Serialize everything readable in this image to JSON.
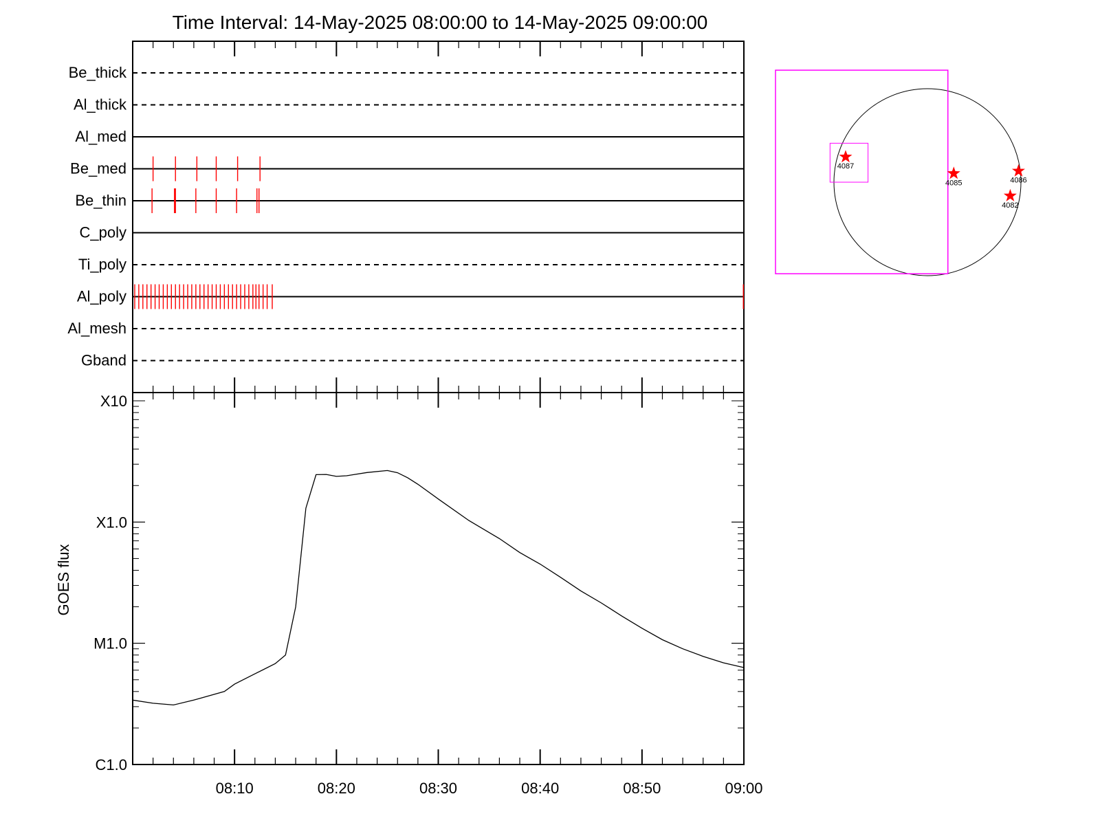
{
  "chart_data": {
    "title": "Time Interval: 14-May-2025 08:00:00 to 14-May-2025 09:00:00",
    "time_axis": {
      "range_minutes": [
        0,
        60
      ],
      "tick_labels": [
        {
          "minute": 10,
          "label": "08:10"
        },
        {
          "minute": 20,
          "label": "08:20"
        },
        {
          "minute": 30,
          "label": "08:30"
        },
        {
          "minute": 40,
          "label": "08:40"
        },
        {
          "minute": 50,
          "label": "08:50"
        },
        {
          "minute": 60,
          "label": "09:00"
        }
      ],
      "major_every_minutes": 10,
      "minor_every_minutes": 2
    },
    "filter_panel": {
      "type": "timeline",
      "rows": [
        {
          "name": "Be_thick",
          "style": "dashed",
          "events": []
        },
        {
          "name": "Al_thick",
          "style": "dashed",
          "events": []
        },
        {
          "name": "Al_med",
          "style": "solid",
          "events": []
        },
        {
          "name": "Be_med",
          "style": "solid",
          "events": [
            2.0,
            4.2,
            6.3,
            8.2,
            10.3,
            12.5
          ]
        },
        {
          "name": "Be_thin",
          "style": "solid",
          "events": [
            1.9,
            4.1,
            4.2,
            6.2,
            8.2,
            10.2,
            12.2,
            12.4
          ]
        },
        {
          "name": "C_poly",
          "style": "solid",
          "events": []
        },
        {
          "name": "Ti_poly",
          "style": "dashed",
          "events": []
        },
        {
          "name": "Al_poly",
          "style": "solid",
          "events": [
            0.2,
            0.6,
            1.0,
            1.4,
            1.8,
            2.2,
            2.6,
            3.0,
            3.4,
            3.8,
            4.2,
            4.6,
            5.0,
            5.4,
            5.8,
            6.2,
            6.6,
            7.0,
            7.4,
            7.8,
            8.2,
            8.6,
            9.0,
            9.4,
            9.8,
            10.2,
            10.6,
            11.0,
            11.4,
            11.8,
            12.1,
            12.4,
            12.8,
            13.2,
            13.7,
            59.95
          ]
        },
        {
          "name": "Al_mesh",
          "style": "dashed",
          "events": []
        },
        {
          "name": "Gband",
          "style": "dashed",
          "events": []
        }
      ],
      "event_color": "#ff0000"
    },
    "goes_panel": {
      "type": "line",
      "ylabel": "GOES flux",
      "y_scale": "log",
      "ylim": [
        1e-06,
        0.001
      ],
      "y_ticks": [
        {
          "value": 0.001,
          "label": "X10"
        },
        {
          "value": 0.0001,
          "label": "X1.0"
        },
        {
          "value": 1e-05,
          "label": "M1.0"
        },
        {
          "value": 1e-06,
          "label": "C1.0"
        }
      ],
      "series": [
        {
          "x": [
            0,
            2,
            4,
            6,
            9,
            10,
            12,
            14,
            15,
            16,
            17,
            18,
            19,
            20,
            21,
            23,
            25,
            26,
            27,
            28,
            30,
            33,
            36,
            38,
            40,
            42,
            44,
            46,
            48,
            50,
            52,
            54,
            56,
            58,
            60
          ],
          "y": [
            3.4e-06,
            3.2e-06,
            3.1e-06,
            3.4e-06,
            4e-06,
            4.6e-06,
            5.6e-06,
            6.8e-06,
            8e-06,
            2e-05,
            0.00013,
            0.000246,
            0.000247,
            0.000238,
            0.000241,
            0.000256,
            0.000266,
            0.000255,
            0.000232,
            0.000205,
            0.000155,
            0.000103,
            7.3e-05,
            5.6e-05,
            4.5e-05,
            3.5e-05,
            2.7e-05,
            2.15e-05,
            1.68e-05,
            1.33e-05,
            1.07e-05,
            9e-06,
            7.8e-06,
            6.9e-06,
            6.3e-06
          ]
        }
      ]
    },
    "solar_disk": {
      "type": "scatter",
      "disk_radius_arcsec": 960,
      "markers": [
        {
          "label": "4087",
          "x": -840,
          "y": 260
        },
        {
          "label": "4085",
          "x": 270,
          "y": 90
        },
        {
          "label": "4086",
          "x": 935,
          "y": 115
        },
        {
          "label": "4082",
          "x": 850,
          "y": -140
        }
      ],
      "fov_large": {
        "x": [
          -1560,
          210
        ],
        "y": [
          1150,
          -940
        ]
      },
      "fov_small": {
        "x": [
          -1000,
          -610
        ],
        "y": [
          400,
          0
        ]
      },
      "marker_color": "#ff0000",
      "fov_color": "#ff00ff"
    }
  }
}
